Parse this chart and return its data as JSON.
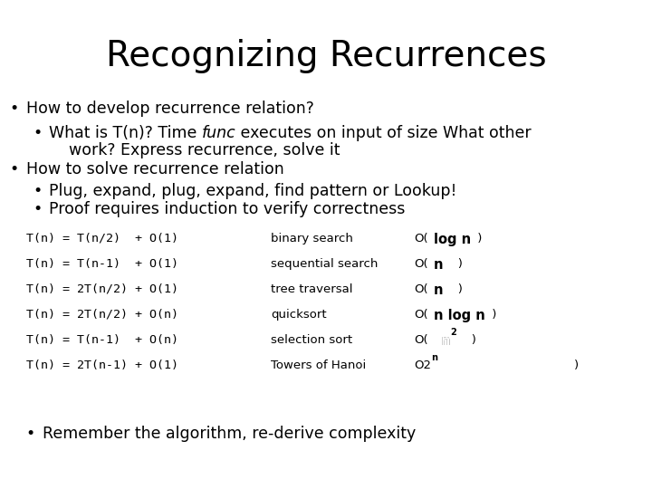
{
  "title": "Recognizing Recurrences",
  "background_color": "#ffffff",
  "text_color": "#000000",
  "title_fontsize": 28,
  "body_fontsize": 12.5,
  "mono_fontsize": 9.5,
  "table_rows": [
    {
      "recurrence": "T(n) = T(n/2)  + O(1)",
      "algorithm": "binary search",
      "complexity_prefix": "O(",
      "complexity_bold": "log n",
      "complexity_suffix": " )",
      "type": "normal"
    },
    {
      "recurrence": "T(n) = T(n-1)  + O(1)",
      "algorithm": "sequential search",
      "complexity_prefix": "O(",
      "complexity_bold": "n",
      "complexity_suffix": "   )",
      "type": "normal"
    },
    {
      "recurrence": "T(n) = 2T(n/2) + O(1)",
      "algorithm": "tree traversal",
      "complexity_prefix": "O(",
      "complexity_bold": "n",
      "complexity_suffix": "   )",
      "type": "normal"
    },
    {
      "recurrence": "T(n) = 2T(n/2) + O(n)",
      "algorithm": "quicksort",
      "complexity_prefix": "O(",
      "complexity_bold": "n log n",
      "complexity_suffix": " )",
      "type": "normal"
    },
    {
      "recurrence": "T(n) = T(n-1)  + O(n)",
      "algorithm": "selection sort",
      "complexity_prefix": "O(",
      "complexity_bold": "n",
      "complexity_suffix": ")",
      "type": "n2"
    },
    {
      "recurrence": "T(n) = 2T(n-1) + O(1)",
      "algorithm": "Towers of Hanoi",
      "complexity_prefix": "O2",
      "complexity_bold": "n",
      "complexity_suffix": "          )",
      "type": "2n"
    }
  ],
  "footer_bullet": "Remember the algorithm, re-derive complexity"
}
